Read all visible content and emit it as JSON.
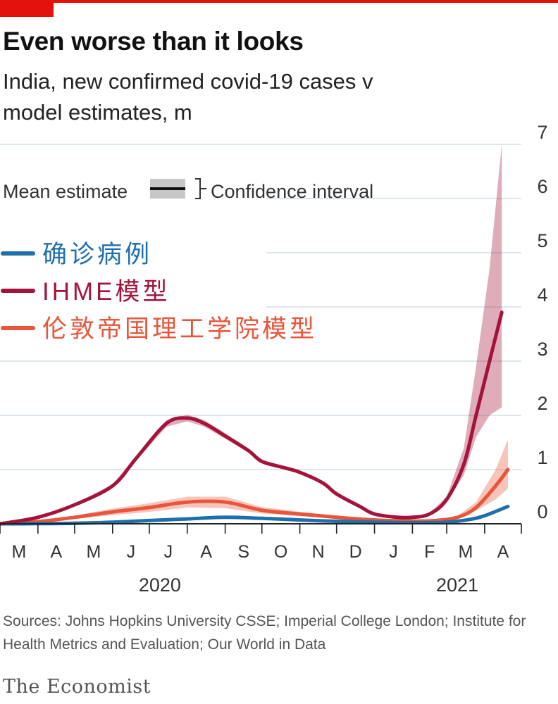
{
  "brand_bar_color": "#e3120b",
  "chart_data": {
    "type": "line",
    "title": "Even worse than it looks",
    "subtitle": "India, new confirmed covid-19 cases v model estimates, m",
    "ylim": [
      0,
      7
    ],
    "y_ticks": [
      "0",
      "1",
      "2",
      "3",
      "4",
      "5",
      "6",
      "7"
    ],
    "x_range": [
      "2020-03-01",
      "2021-05-01"
    ],
    "x_month_labels": [
      "M",
      "A",
      "M",
      "J",
      "J",
      "A",
      "S",
      "O",
      "N",
      "D",
      "J",
      "F",
      "M",
      "A"
    ],
    "x_year_labels": [
      {
        "text": "2020",
        "date": "2020-07-01"
      },
      {
        "text": "2021",
        "date": "2021-03-01"
      }
    ],
    "legend_key": {
      "mean": "Mean estimate",
      "interval": "Confidence interval"
    },
    "legend_items": [
      {
        "label": "确诊病例",
        "color": "#1f6fab"
      },
      {
        "label": "IHME模型",
        "color": "#a3133a"
      },
      {
        "label": "伦敦帝国理工学院模型",
        "color": "#e8553a"
      }
    ],
    "series": [
      {
        "name": "确诊病例",
        "color": "#1f6fab",
        "x": [
          "2020-03-01",
          "2020-04-01",
          "2020-05-01",
          "2020-06-01",
          "2020-07-01",
          "2020-08-01",
          "2020-09-01",
          "2020-10-01",
          "2020-11-01",
          "2020-12-01",
          "2021-01-01",
          "2021-02-01",
          "2021-03-01",
          "2021-03-20",
          "2021-04-01",
          "2021-04-20"
        ],
        "y": [
          0.0,
          0.002,
          0.01,
          0.03,
          0.06,
          0.09,
          0.12,
          0.1,
          0.07,
          0.045,
          0.03,
          0.02,
          0.03,
          0.08,
          0.15,
          0.32
        ]
      },
      {
        "name": "IHME模型",
        "color": "#a3133a",
        "x": [
          "2020-03-01",
          "2020-04-01",
          "2020-05-01",
          "2020-06-01",
          "2020-06-20",
          "2020-07-15",
          "2020-08-01",
          "2020-08-15",
          "2020-09-01",
          "2020-09-20",
          "2020-10-01",
          "2020-10-20",
          "2020-11-01",
          "2020-11-20",
          "2020-12-01",
          "2020-12-20",
          "2021-01-01",
          "2021-01-20",
          "2021-02-01",
          "2021-02-15",
          "2021-03-01",
          "2021-03-15",
          "2021-03-25",
          "2021-04-05",
          "2021-04-15"
        ],
        "y": [
          0.0,
          0.12,
          0.35,
          0.7,
          1.2,
          1.85,
          1.95,
          1.85,
          1.62,
          1.35,
          1.15,
          1.03,
          0.95,
          0.75,
          0.55,
          0.32,
          0.18,
          0.12,
          0.12,
          0.18,
          0.45,
          1.1,
          2.0,
          3.0,
          3.9
        ],
        "lower": [
          0.0,
          0.11,
          0.33,
          0.67,
          1.16,
          1.79,
          1.89,
          1.79,
          1.57,
          1.31,
          1.12,
          1.0,
          0.92,
          0.73,
          0.53,
          0.31,
          0.17,
          0.11,
          0.11,
          0.16,
          0.4,
          0.9,
          1.6,
          2.0,
          2.15
        ],
        "upper": [
          0.0,
          0.13,
          0.37,
          0.73,
          1.24,
          1.91,
          2.01,
          1.91,
          1.67,
          1.39,
          1.18,
          1.06,
          0.98,
          0.77,
          0.57,
          0.33,
          0.19,
          0.13,
          0.13,
          0.2,
          0.5,
          1.4,
          2.9,
          4.7,
          7.0
        ]
      },
      {
        "name": "伦敦帝国理工学院模型",
        "color": "#e8553a",
        "x": [
          "2020-03-01",
          "2020-04-01",
          "2020-05-01",
          "2020-06-01",
          "2020-07-01",
          "2020-08-01",
          "2020-09-01",
          "2020-10-01",
          "2020-11-01",
          "2020-12-01",
          "2021-01-01",
          "2021-02-01",
          "2021-02-20",
          "2021-03-10",
          "2021-03-25",
          "2021-04-10",
          "2021-04-20"
        ],
        "y": [
          0.0,
          0.04,
          0.12,
          0.22,
          0.3,
          0.4,
          0.4,
          0.25,
          0.18,
          0.12,
          0.07,
          0.05,
          0.06,
          0.12,
          0.3,
          0.7,
          1.0
        ],
        "lower": [
          0.0,
          0.03,
          0.09,
          0.16,
          0.22,
          0.3,
          0.29,
          0.19,
          0.14,
          0.1,
          0.06,
          0.04,
          0.05,
          0.1,
          0.24,
          0.45,
          0.65
        ],
        "upper": [
          0.0,
          0.05,
          0.15,
          0.28,
          0.38,
          0.5,
          0.5,
          0.31,
          0.22,
          0.15,
          0.08,
          0.06,
          0.07,
          0.15,
          0.4,
          1.0,
          1.55
        ]
      }
    ]
  },
  "source": "Sources: Johns Hopkins University CSSE; Imperial College London; Institute for Health Metrics and Evaluation; Our World in Data",
  "brand": "The Economist"
}
